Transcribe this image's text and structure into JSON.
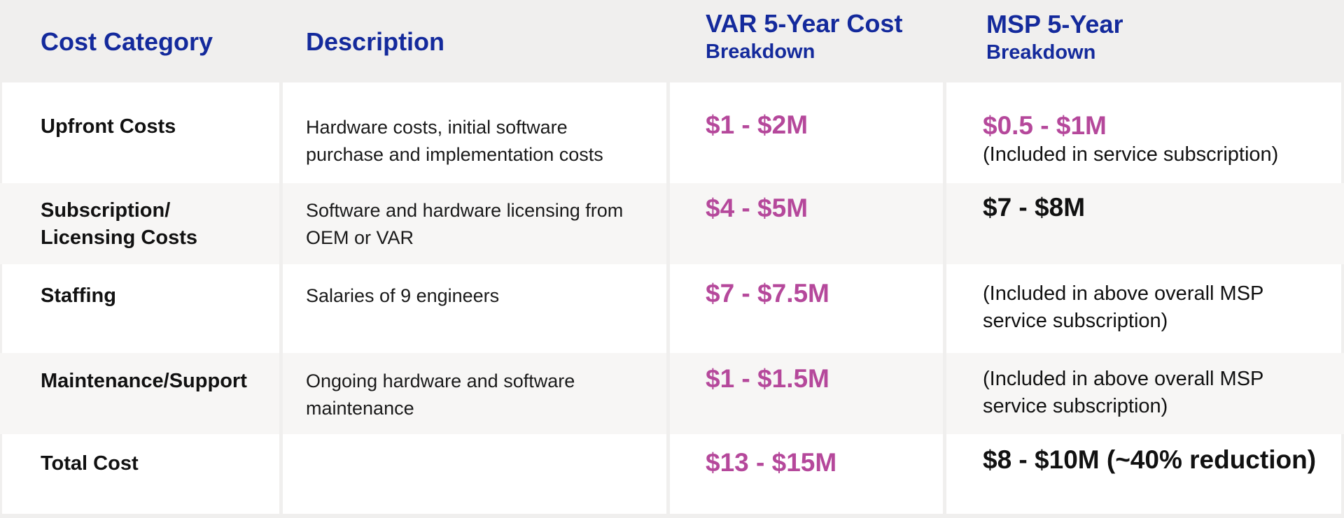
{
  "header": {
    "category": "Cost Category",
    "description": "Description",
    "var_title": "VAR 5-Year Cost",
    "var_sub": "Breakdown",
    "msp_title": "MSP 5-Year",
    "msp_sub": "Breakdown"
  },
  "rows": [
    {
      "category": "Upfront Costs",
      "description": "Hardware costs, initial software purchase and implementation costs",
      "var": "$1 - $2M",
      "msp_value": "$0.5 - $1M",
      "msp_note": "(Included in service subscription)"
    },
    {
      "category": "Subscription/ Licensing Costs",
      "description": "Software and hardware licensing from OEM or VAR",
      "var": "$4 - $5M",
      "msp_value": "$7 - $8M",
      "msp_note": ""
    },
    {
      "category": "Staffing",
      "description": "Salaries of 9 engineers",
      "var": "$7 - $7.5M",
      "msp_value": "",
      "msp_note": "(Included in above overall MSP service subscription)"
    },
    {
      "category": "Maintenance/Support",
      "description": "Ongoing hardware and software maintenance",
      "var": "$1 - $1.5M",
      "msp_value": "",
      "msp_note": "(Included in above overall MSP service subscription)"
    },
    {
      "category": "Total Cost",
      "description": "",
      "var": "$13 - $15M",
      "msp_value": "$8 - $10M (~40% reduction)",
      "msp_note": ""
    }
  ],
  "colors": {
    "header_text": "#142a9c",
    "var_values": "#b5489b",
    "header_bg": "#f0efee",
    "stripe_bg": "#f7f6f5"
  }
}
